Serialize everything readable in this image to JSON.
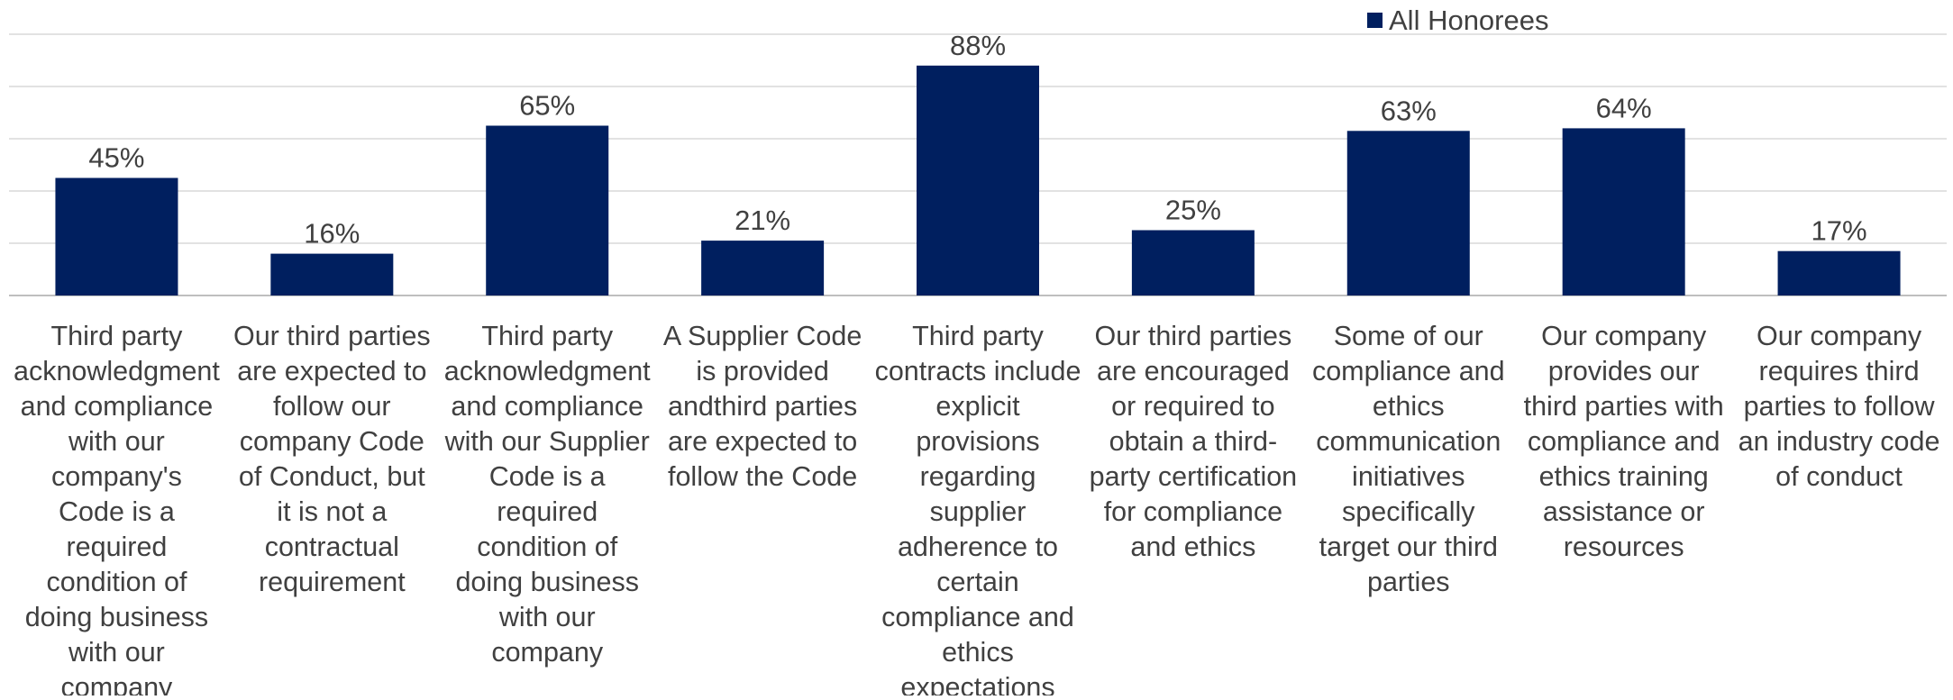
{
  "chart_data": {
    "type": "bar",
    "title": "",
    "xlabel": "",
    "ylabel": "",
    "ylim": [
      0,
      100
    ],
    "grid": true,
    "legend_position": "top-right",
    "categories": [
      "Third party acknowledgment and compliance with our company's Code is a required condition of doing business with our company",
      "Our third parties are expected to follow our company Code of Conduct, but it is not a contractual requirement",
      "Third party acknowledgment and compliance with our Supplier Code is a required condition of doing business with our company",
      "A Supplier Code is provided andthird parties are expected to follow the Code",
      "Third party contracts include explicit provisions regarding supplier adherence to certain compliance and ethics expectations",
      "Our third parties are encouraged or required to obtain a third-party certification for compliance and ethics",
      "Some of our compliance and ethics communication initiatives specifically target our third parties",
      "Our company provides our third parties with compliance and ethics training assistance or resources",
      "Our company requires third parties to follow an industry code of conduct"
    ],
    "category_lines": [
      [
        "Third party",
        "acknowledgment",
        "and compliance",
        "with our",
        "company's",
        "Code is a",
        "required",
        "condition of",
        "doing business",
        "with our",
        "company"
      ],
      [
        "Our third parties",
        "are expected to",
        "follow our",
        "company Code",
        "of Conduct, but",
        "it is not a",
        "contractual",
        "requirement"
      ],
      [
        "Third party",
        "acknowledgment",
        "and compliance",
        "with our Supplier",
        "Code is a",
        "required",
        "condition of",
        "doing business",
        "with our",
        "company"
      ],
      [
        "A Supplier Code",
        "is provided",
        "andthird parties",
        "are expected to",
        "follow the Code"
      ],
      [
        "Third party",
        "contracts include",
        "explicit",
        "provisions",
        "regarding",
        "supplier",
        "adherence to",
        "certain",
        "compliance and",
        "ethics",
        "expectations"
      ],
      [
        "Our third parties",
        "are encouraged",
        "or required to",
        "obtain a third-",
        "party certification",
        "for compliance",
        "and ethics"
      ],
      [
        "Some of our",
        "compliance and",
        "ethics",
        "communication",
        "initiatives",
        "specifically",
        "target our third",
        "parties"
      ],
      [
        "Our company",
        "provides our",
        "third parties with",
        "compliance and",
        "ethics training",
        "assistance or",
        "resources"
      ],
      [
        "Our company",
        "requires third",
        "parties to follow",
        "an industry code",
        "of conduct"
      ]
    ],
    "series": [
      {
        "name": "All Honorees",
        "color": "#001f5f",
        "values": [
          45,
          16,
          65,
          21,
          88,
          25,
          63,
          64,
          17
        ],
        "labels": [
          "45%",
          "16%",
          "65%",
          "21%",
          "88%",
          "25%",
          "63%",
          "64%",
          "17%"
        ]
      }
    ],
    "colors": {
      "bar": "#001f5f",
      "grid": "#d9d9d9",
      "text": "#404040"
    }
  }
}
